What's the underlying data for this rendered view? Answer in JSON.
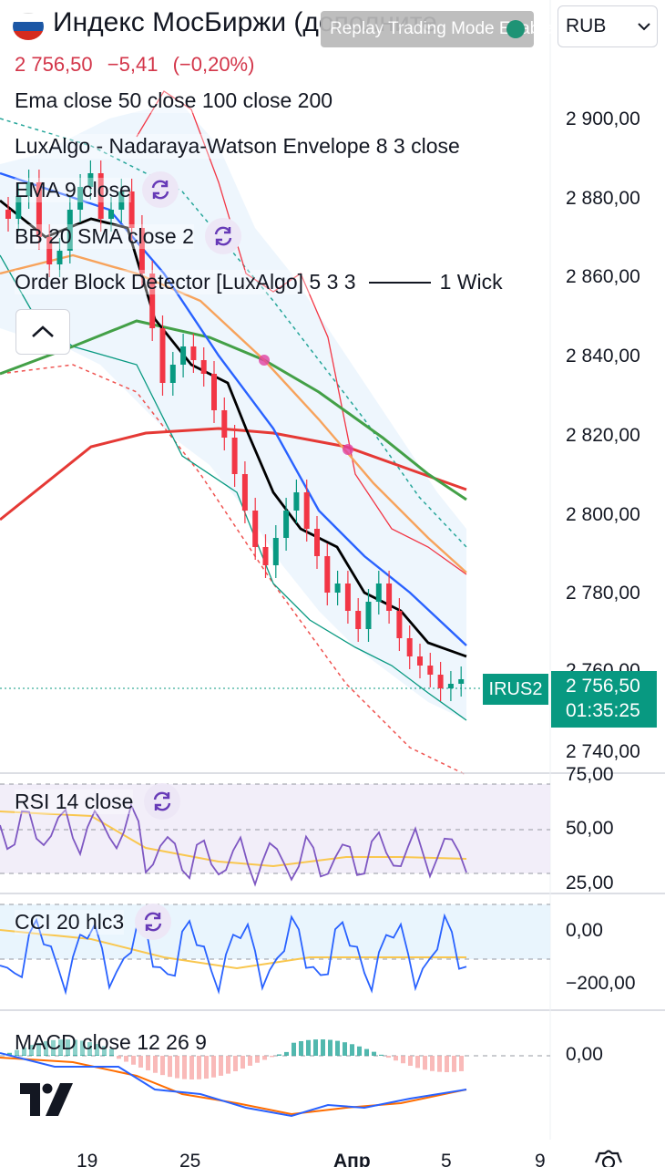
{
  "header": {
    "title": "Индекс МосБиржи (дополните",
    "replay_badge": "Replay Trading Mode Enabled",
    "currency": "RUB",
    "price": "2 756,50",
    "change": "−5,41",
    "change_pct": "(−0,20%)"
  },
  "indicators": {
    "ema_multi": "Ema close 50 close 100 close 200",
    "nadaraya": "LuxAlgo - Nadaraya-Watson Envelope 8 3 close",
    "ema9": "EMA 9 close",
    "bb": "BB 20 SMA close 2",
    "order_block": "Order Block Detector [LuxAlgo] 5 3 3",
    "order_block_suffix": "1 Wick",
    "rsi": "RSI 14 close",
    "cci": "CCI 20 hlc3",
    "macd": "MACD close 12 26 9"
  },
  "price_axis": [
    "2 900,00",
    "2 880,00",
    "2 860,00",
    "2 840,00",
    "2 820,00",
    "2 800,00",
    "2 780,00",
    "2 760,00",
    "2 740,00"
  ],
  "rsi_axis": [
    "75,00",
    "50,00",
    "25,00"
  ],
  "cci_axis": [
    "0,00",
    "−200,00"
  ],
  "macd_axis": [
    "0,00"
  ],
  "time_axis": [
    "19",
    "25",
    "Апр",
    "5",
    "9"
  ],
  "last_price": {
    "symbol": "IRUS2",
    "price": "2 756,50",
    "countdown": "01:35:25"
  },
  "colors": {
    "up": "#089981",
    "down": "#f23645",
    "ema9": "#000000",
    "ema50": "#f7a35c",
    "ema100": "#43a047",
    "ema200": "#e53935",
    "bb_basis": "#2962ff",
    "rsi": "#7e57c2",
    "cci": "#2962ff",
    "macd": "#2962ff",
    "signal": "#ff6d00"
  },
  "icons": [
    "refresh-icon",
    "chevron-up-icon",
    "chevron-down-icon",
    "settings-icon",
    "tradingview-logo-icon"
  ]
}
